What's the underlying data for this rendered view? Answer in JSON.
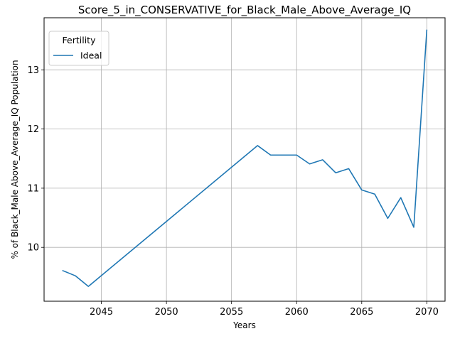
{
  "chart_data": {
    "type": "line",
    "title": "Score_5_in_CONSERVATIVE_for_Black_Male_Above_Average_IQ",
    "xlabel": "Years",
    "ylabel": "% of Black_Male Above_Average_IQ Population",
    "xlim": [
      2040.6,
      2071.4
    ],
    "ylim": [
      9.09,
      13.88
    ],
    "xticks": [
      2045,
      2050,
      2055,
      2060,
      2065,
      2070
    ],
    "yticks": [
      10,
      11,
      12,
      13
    ],
    "grid": true,
    "legend": {
      "title": "Fertility",
      "placement": "top-left"
    },
    "series": [
      {
        "name": "Ideal",
        "color": "#1f77b4",
        "x": [
          2042,
          2043,
          2044,
          2057,
          2058,
          2059,
          2060,
          2061,
          2062,
          2063,
          2064,
          2065,
          2066,
          2067,
          2068,
          2069,
          2070
        ],
        "y": [
          9.61,
          9.52,
          9.34,
          11.72,
          11.56,
          11.56,
          11.56,
          11.41,
          11.48,
          11.26,
          11.33,
          10.97,
          10.9,
          10.49,
          10.84,
          10.34,
          13.68
        ]
      }
    ]
  }
}
